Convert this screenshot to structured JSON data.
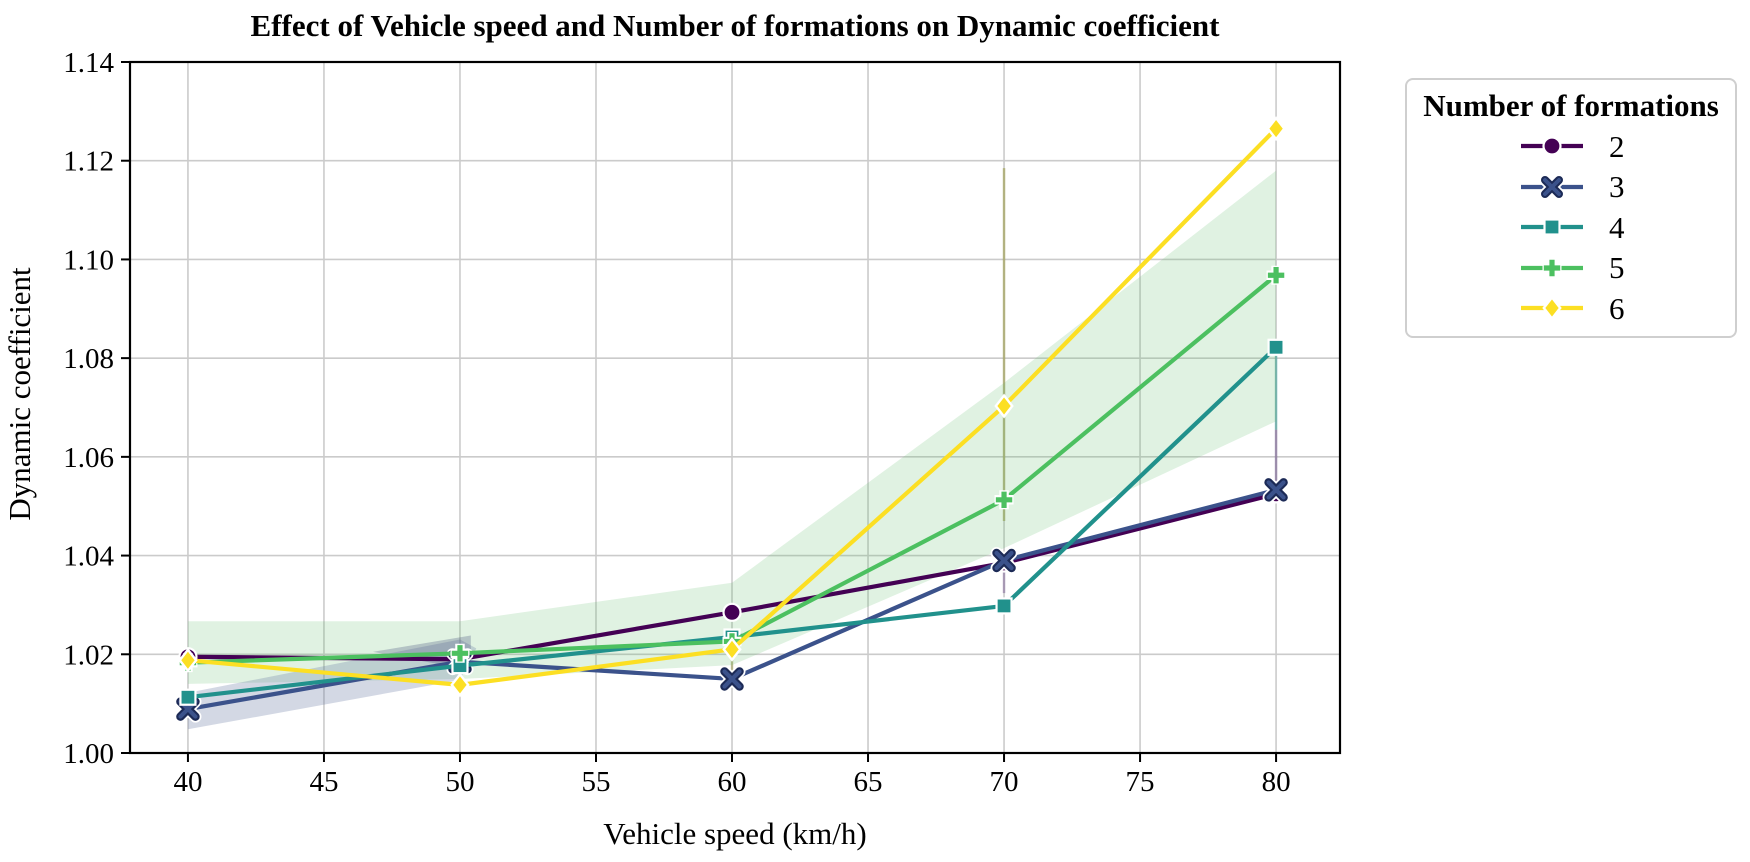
{
  "legend": {
    "title": "Number of formations"
  },
  "colors": {
    "grid": "#cbcbcb",
    "frame": "#000000",
    "background": "#ffffff",
    "tick_text": "#000000"
  },
  "chart_data": {
    "type": "line",
    "title": "Effect of Vehicle speed and Number of formations on Dynamic coefficient",
    "xlabel": "Vehicle speed (km/h)",
    "ylabel": "Dynamic coefficient",
    "legend_title": "Number of formations",
    "legend_position": "upper right, outside axes",
    "grid": true,
    "x_range": [
      37.87,
      82.35
    ],
    "y_range": [
      1.0,
      1.14
    ],
    "x_ticks": [
      {
        "v": 40,
        "label": "40"
      },
      {
        "v": 45,
        "label": "45"
      },
      {
        "v": 50,
        "label": "50"
      },
      {
        "v": 55,
        "label": "55"
      },
      {
        "v": 60,
        "label": "60"
      },
      {
        "v": 65,
        "label": "65"
      },
      {
        "v": 70,
        "label": "70"
      },
      {
        "v": 75,
        "label": "75"
      },
      {
        "v": 80,
        "label": "80"
      }
    ],
    "y_ticks": [
      {
        "v": 1.0,
        "label": "1.00"
      },
      {
        "v": 1.02,
        "label": "1.02"
      },
      {
        "v": 1.04,
        "label": "1.04"
      },
      {
        "v": 1.06,
        "label": "1.06"
      },
      {
        "v": 1.08,
        "label": "1.08"
      },
      {
        "v": 1.1,
        "label": "1.10"
      },
      {
        "v": 1.12,
        "label": "1.12"
      },
      {
        "v": 1.14,
        "label": "1.14"
      }
    ],
    "x": [
      40,
      50,
      60,
      70,
      80
    ],
    "series": [
      {
        "name": "2",
        "color": "#440154",
        "marker": "circle",
        "marker_edge": "#ffffff",
        "values": [
          1.0195,
          1.019,
          1.0285,
          1.0385,
          1.0525
        ]
      },
      {
        "name": "3",
        "color": "#3b528b",
        "marker": "x",
        "marker_edge": "#1c2a56",
        "values": [
          1.0089,
          1.0185,
          1.015,
          1.039,
          1.0533
        ]
      },
      {
        "name": "4",
        "color": "#21918c",
        "marker": "square",
        "marker_edge": "#ffffff",
        "values": [
          1.0113,
          1.0177,
          1.0235,
          1.0298,
          1.0822
        ]
      },
      {
        "name": "5",
        "color": "#4cc060",
        "marker": "plus",
        "marker_edge": "#ffffff",
        "values": [
          1.0183,
          1.0202,
          1.0226,
          1.0513,
          1.0968
        ]
      },
      {
        "name": "6",
        "color": "#fcdf23",
        "marker": "diamond",
        "marker_edge": "#ffffff",
        "values": [
          1.0188,
          1.0138,
          1.021,
          1.0703,
          1.1265
        ]
      }
    ],
    "bands": [
      {
        "name": "ci-band-formation-5",
        "fill": "rgba(100,190,110,0.20)",
        "x": [
          40,
          50,
          60,
          70,
          80
        ],
        "top": [
          1.0267,
          1.0267,
          1.0345,
          1.075,
          1.118
        ],
        "bottom": [
          1.014,
          1.015,
          1.0178,
          1.0415,
          1.0672
        ]
      },
      {
        "name": "ci-band-formation-3",
        "fill": "rgba(110,125,165,0.30)",
        "x": [
          40,
          50,
          50.6
        ],
        "top": [
          1.0122,
          1.023,
          1.0212
        ],
        "bottom": [
          1.0048,
          1.0148,
          1.0212
        ]
      },
      {
        "name": "ci-wedge-formation-2",
        "fill": "rgba(75,85,125,0.30)",
        "polygon": [
          [
            46.8,
            1.0205
          ],
          [
            50.4,
            1.0238
          ],
          [
            50.4,
            1.0168
          ]
        ]
      }
    ],
    "error_bars": [
      {
        "x": 60,
        "y0": 1.0148,
        "y1": 1.021,
        "color": "rgba(150,150,60,0.45)"
      },
      {
        "x": 70,
        "y0": 1.047,
        "y1": 1.1185,
        "color": "rgba(150,150,60,0.55)"
      },
      {
        "x": 70,
        "y0": 1.0324,
        "y1": 1.0385,
        "color": "rgba(110,80,140,0.45)"
      },
      {
        "x": 80,
        "y0": 1.0655,
        "y1": 1.0822,
        "color": "rgba(33,145,140,0.50)"
      },
      {
        "x": 80,
        "y0": 1.0525,
        "y1": 1.0655,
        "color": "rgba(100,70,130,0.50)"
      }
    ]
  }
}
